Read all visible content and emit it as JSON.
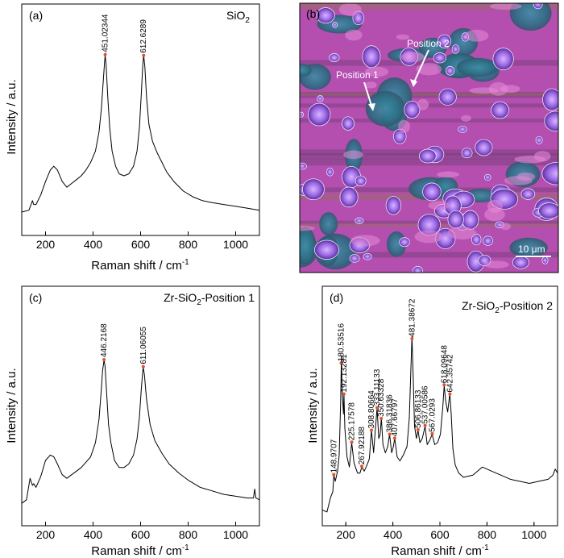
{
  "chart_data": [
    {
      "panel": "(a)",
      "type": "line",
      "title": "SiO₂",
      "xlabel": "Raman shift / cm⁻¹",
      "ylabel": "Intensity / a.u.",
      "xlim": [
        100,
        1100
      ],
      "ylim": [
        0,
        100
      ],
      "xticks": [
        200,
        400,
        600,
        800,
        1000
      ],
      "peak_labels": [
        {
          "x": 451.02344,
          "label": "451.02344"
        },
        {
          "x": 612.6289,
          "label": "612.6289"
        }
      ],
      "series": [
        {
          "x": [
            100,
            130,
            145,
            150,
            160,
            180,
            200,
            220,
            235,
            250,
            270,
            290,
            310,
            330,
            350,
            370,
            390,
            410,
            425,
            435,
            442,
            448,
            451,
            455,
            462,
            470,
            480,
            495,
            510,
            530,
            550,
            570,
            585,
            595,
            603,
            609,
            613,
            618,
            625,
            635,
            650,
            670,
            690,
            710,
            740,
            780,
            820,
            860,
            900,
            950,
            1000,
            1050,
            1100
          ],
          "y": [
            8,
            9,
            14,
            12,
            12,
            17,
            24,
            30,
            32,
            30,
            24,
            21,
            23,
            25,
            27,
            30,
            34,
            40,
            50,
            62,
            75,
            86,
            90,
            85,
            68,
            52,
            40,
            32,
            28,
            27,
            28,
            32,
            40,
            52,
            70,
            85,
            90,
            84,
            68,
            54,
            45,
            39,
            34,
            29,
            24,
            19,
            16,
            14,
            13,
            12,
            11,
            10,
            9
          ]
        }
      ]
    },
    {
      "panel": "(b)",
      "type": "image",
      "scalebar": "10 μm",
      "annotations": [
        "Position 1",
        "Position 2"
      ]
    },
    {
      "panel": "(c)",
      "type": "line",
      "title": "Zr-SiO₂-Position 1",
      "xlabel": "Raman shift / cm⁻¹",
      "ylabel": "Intensity / a.u.",
      "xlim": [
        100,
        1100
      ],
      "ylim": [
        0,
        100
      ],
      "xticks": [
        200,
        400,
        600,
        800,
        1000
      ],
      "peak_labels": [
        {
          "x": 446.2168,
          "label": "446.2168"
        },
        {
          "x": 611.06055,
          "label": "611.06055"
        }
      ],
      "series": [
        {
          "x": [
            100,
            120,
            135,
            145,
            150,
            160,
            180,
            200,
            220,
            235,
            250,
            270,
            290,
            310,
            330,
            350,
            370,
            390,
            410,
            425,
            435,
            440,
            446,
            450,
            457,
            465,
            475,
            490,
            510,
            530,
            550,
            570,
            585,
            595,
            603,
            609,
            611,
            616,
            625,
            640,
            660,
            690,
            720,
            760,
            800,
            850,
            900,
            950,
            1000,
            1050,
            1075,
            1080,
            1085,
            1100
          ],
          "y": [
            8,
            10,
            22,
            18,
            19,
            17,
            23,
            32,
            35,
            34,
            30,
            24,
            22,
            24,
            26,
            28,
            31,
            34,
            42,
            55,
            72,
            82,
            88,
            85,
            70,
            52,
            42,
            32,
            28,
            28,
            30,
            35,
            44,
            56,
            72,
            82,
            84,
            80,
            66,
            52,
            43,
            36,
            30,
            25,
            21,
            17,
            15,
            13,
            12,
            11,
            11,
            16,
            11,
            10
          ]
        }
      ]
    },
    {
      "panel": "(d)",
      "type": "line",
      "title": "Zr-SiO₂-Position 2",
      "xlabel": "Raman shift / cm⁻¹",
      "ylabel": "Intensity / a.u.",
      "xlim": [
        100,
        1100
      ],
      "ylim": [
        0,
        100
      ],
      "xticks": [
        200,
        400,
        600,
        800,
        1000
      ],
      "peak_labels": [
        {
          "x": 148.9707,
          "label": "148.9707"
        },
        {
          "x": 180.53516,
          "label": "180.53516"
        },
        {
          "x": 192.13281,
          "label": "192.13281"
        },
        {
          "x": 225.17578,
          "label": "225.17578"
        },
        {
          "x": 267.92188,
          "label": "267.92188"
        },
        {
          "x": 308.80664,
          "label": "308.80664"
        },
        {
          "x": 333.11133,
          "label": "333.11133"
        },
        {
          "x": 350.63328,
          "label": "350.63328"
        },
        {
          "x": 386.31836,
          "label": "386.31836"
        },
        {
          "x": 407.66797,
          "label": "407.66797"
        },
        {
          "x": 481.38672,
          "label": "481.38672"
        },
        {
          "x": 506.86133,
          "label": "506.86133"
        },
        {
          "x": 537.00586,
          "label": "537.00586"
        },
        {
          "x": 567.0293,
          "label": "567.0293"
        },
        {
          "x": 618.09648,
          "label": "618.09648"
        },
        {
          "x": 642.35742,
          "label": "642.35742"
        }
      ],
      "series": [
        {
          "x": [
            100,
            120,
            135,
            145,
            149,
            155,
            165,
            172,
            178,
            181,
            185,
            190,
            192,
            196,
            205,
            215,
            225,
            235,
            250,
            260,
            268,
            278,
            290,
            300,
            309,
            318,
            326,
            333,
            340,
            346,
            351,
            358,
            368,
            378,
            386,
            395,
            402,
            408,
            418,
            430,
            445,
            460,
            470,
            476,
            481,
            486,
            492,
            500,
            507,
            515,
            525,
            537,
            546,
            556,
            567,
            578,
            590,
            602,
            612,
            618,
            625,
            633,
            642,
            648,
            655,
            665,
            680,
            700,
            740,
            780,
            820,
            860,
            900,
            940,
            980,
            1020,
            1060,
            1080,
            1090,
            1100
          ],
          "y": [
            5,
            4,
            11,
            14,
            22,
            19,
            24,
            32,
            58,
            80,
            62,
            52,
            62,
            45,
            31,
            26,
            38,
            28,
            23,
            23,
            26,
            24,
            27,
            30,
            44,
            33,
            45,
            55,
            40,
            42,
            50,
            37,
            33,
            36,
            42,
            33,
            36,
            40,
            31,
            29,
            32,
            36,
            50,
            72,
            90,
            72,
            46,
            40,
            44,
            38,
            40,
            46,
            37,
            39,
            42,
            37,
            38,
            42,
            55,
            66,
            58,
            53,
            62,
            52,
            35,
            27,
            23,
            21,
            22,
            26,
            24,
            22,
            20,
            19,
            18,
            19,
            20,
            22,
            25,
            23
          ]
        }
      ]
    }
  ]
}
